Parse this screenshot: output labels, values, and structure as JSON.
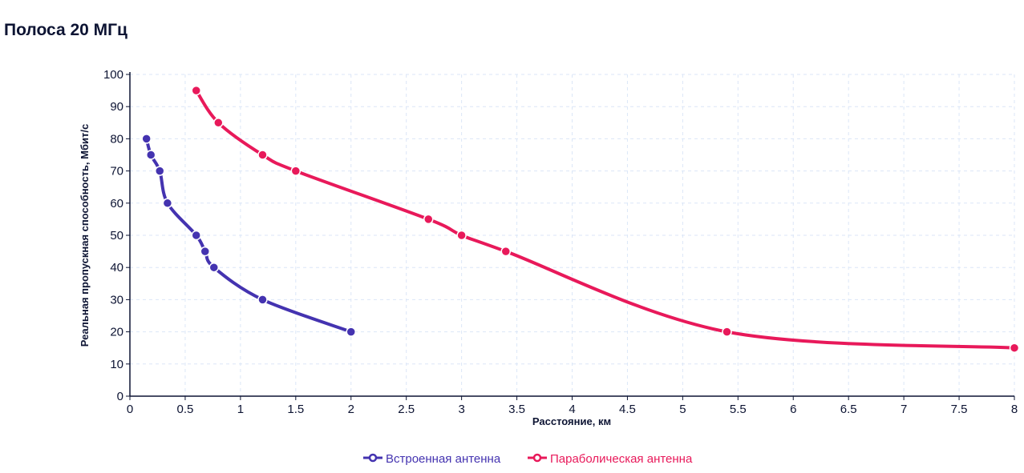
{
  "chart_data": {
    "type": "line",
    "title": "Полоса 20 МГц",
    "xlabel": "Расстояние, км",
    "ylabel": "Реальная пропускная способность, Мбит/с",
    "xlim": [
      0,
      8
    ],
    "ylim": [
      0,
      100
    ],
    "xticks": [
      "0",
      "0.5",
      "1",
      "1.5",
      "2",
      "2.5",
      "3",
      "3.5",
      "4",
      "4.5",
      "5",
      "5.5",
      "6",
      "6.5",
      "7",
      "7.5",
      "8"
    ],
    "yticks": [
      "0",
      "10",
      "20",
      "30",
      "40",
      "50",
      "60",
      "70",
      "80",
      "90",
      "100"
    ],
    "grid": true,
    "legend_position": "bottom",
    "series": [
      {
        "name": "Встроенная антенна",
        "color": "#4433b0",
        "x": [
          0.15,
          0.19,
          0.27,
          0.34,
          0.6,
          0.68,
          0.76,
          1.2,
          2.0
        ],
        "y": [
          80,
          75,
          70,
          60,
          50,
          45,
          40,
          30,
          20
        ]
      },
      {
        "name": "Параболическая антенна",
        "color": "#e8195a",
        "x": [
          0.6,
          0.8,
          1.2,
          1.5,
          2.7,
          3.0,
          3.4,
          5.4,
          8.0
        ],
        "y": [
          95,
          85,
          75,
          70,
          55,
          50,
          45,
          20,
          15
        ]
      }
    ]
  }
}
